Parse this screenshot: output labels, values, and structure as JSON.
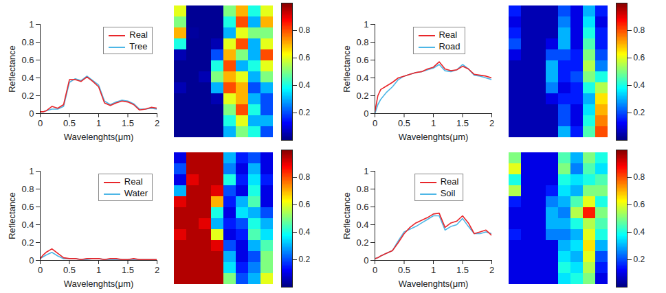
{
  "chart_data": [
    {
      "type": "line",
      "x_label": "Wavelenghts(μm)",
      "y_label": "Reflectance",
      "legend": "northeast",
      "xlim": [
        0,
        2
      ],
      "xticks": [
        0,
        0.5,
        1,
        1.5,
        2
      ],
      "ylim": [
        0,
        1
      ],
      "yticks": [
        0,
        0.2,
        0.4,
        0.6,
        0.8,
        1
      ],
      "x": [
        0,
        0.05,
        0.1,
        0.2,
        0.3,
        0.4,
        0.5,
        0.6,
        0.7,
        0.8,
        0.9,
        1,
        1.1,
        1.2,
        1.3,
        1.4,
        1.5,
        1.6,
        1.7,
        1.8,
        1.9,
        2
      ],
      "series": [
        {
          "name": "Real",
          "color": "#e8262a",
          "values": [
            0.02,
            0.02,
            0.03,
            0.08,
            0.06,
            0.1,
            0.38,
            0.38,
            0.36,
            0.41,
            0.36,
            0.3,
            0.12,
            0.09,
            0.12,
            0.14,
            0.13,
            0.1,
            0.04,
            0.05,
            0.07,
            0.06
          ]
        },
        {
          "name": "Tree",
          "color": "#4db6e6",
          "values": [
            0.02,
            0.02,
            0.03,
            0.05,
            0.05,
            0.08,
            0.35,
            0.39,
            0.37,
            0.42,
            0.37,
            0.32,
            0.14,
            0.1,
            0.13,
            0.15,
            0.14,
            0.11,
            0.05,
            0.05,
            0.06,
            0.05
          ]
        }
      ]
    },
    {
      "type": "heatmap",
      "color": "jet",
      "color_range": [
        0,
        1
      ],
      "color_ticks": [
        0.2,
        0.4,
        0.6,
        0.8
      ],
      "cells": [
        [
          0.6,
          0.02,
          0.02,
          0.02,
          0.5,
          0.7,
          0.4,
          0.6
        ],
        [
          0.5,
          0.02,
          0.02,
          0.02,
          0.4,
          0.8,
          0.3,
          0.7
        ],
        [
          0.7,
          0.03,
          0.02,
          0.02,
          0.3,
          0.6,
          0.5,
          0.5
        ],
        [
          0.4,
          0.02,
          0.02,
          0.05,
          0.6,
          0.8,
          0.3,
          0.6
        ],
        [
          0.05,
          0.02,
          0.02,
          0.2,
          0.7,
          0.5,
          0.3,
          0.8
        ],
        [
          0.02,
          0.02,
          0.02,
          0.4,
          0.8,
          0.3,
          0.4,
          0.6
        ],
        [
          0.02,
          0.02,
          0.05,
          0.5,
          0.7,
          0.6,
          0.3,
          0.5
        ],
        [
          0.05,
          0.02,
          0.02,
          0.3,
          0.8,
          0.7,
          0.2,
          0.3
        ],
        [
          0.02,
          0.02,
          0.02,
          0.05,
          0.6,
          0.7,
          0.3,
          0.2
        ],
        [
          0.02,
          0.02,
          0.02,
          0.02,
          0.5,
          0.8,
          0.4,
          0.2
        ],
        [
          0.02,
          0.02,
          0.02,
          0.02,
          0.4,
          0.6,
          0.3,
          0.3
        ],
        [
          0.02,
          0.02,
          0.02,
          0.02,
          0.3,
          0.5,
          0.4,
          0.2
        ]
      ]
    },
    {
      "type": "line",
      "x_label": "Wavelenghts(μm)",
      "y_label": "Reflectance",
      "legend": "north",
      "xlim": [
        0,
        2
      ],
      "xticks": [
        0,
        0.5,
        1,
        1.5,
        2
      ],
      "ylim": [
        0,
        1
      ],
      "yticks": [
        0,
        0.2,
        0.4,
        0.6,
        0.8,
        1
      ],
      "x": [
        0,
        0.05,
        0.1,
        0.2,
        0.3,
        0.4,
        0.5,
        0.6,
        0.7,
        0.8,
        0.9,
        1,
        1.1,
        1.2,
        1.3,
        1.4,
        1.5,
        1.6,
        1.7,
        1.8,
        1.9,
        2
      ],
      "series": [
        {
          "name": "Real",
          "color": "#e8262a",
          "values": [
            0.02,
            0.2,
            0.27,
            0.31,
            0.35,
            0.4,
            0.42,
            0.44,
            0.46,
            0.47,
            0.5,
            0.52,
            0.58,
            0.5,
            0.48,
            0.49,
            0.53,
            0.5,
            0.44,
            0.43,
            0.42,
            0.4
          ]
        },
        {
          "name": "Road",
          "color": "#4db6e6",
          "values": [
            0,
            0.1,
            0.16,
            0.24,
            0.3,
            0.38,
            0.42,
            0.44,
            0.46,
            0.47,
            0.49,
            0.51,
            0.55,
            0.48,
            0.47,
            0.49,
            0.55,
            0.5,
            0.43,
            0.42,
            0.4,
            0.38
          ]
        }
      ]
    },
    {
      "type": "heatmap",
      "color": "jet",
      "color_range": [
        0,
        1
      ],
      "color_ticks": [
        0.2,
        0.4,
        0.6,
        0.8
      ],
      "cells": [
        [
          0.15,
          0.05,
          0.05,
          0.05,
          0.2,
          0.1,
          0.3,
          0.15
        ],
        [
          0.1,
          0.05,
          0.05,
          0.05,
          0.25,
          0.1,
          0.35,
          0.1
        ],
        [
          0.15,
          0.05,
          0.05,
          0.05,
          0.3,
          0.1,
          0.4,
          0.15
        ],
        [
          0.2,
          0.05,
          0.05,
          0.1,
          0.3,
          0.1,
          0.45,
          0.15
        ],
        [
          0.1,
          0.05,
          0.05,
          0.2,
          0.2,
          0.15,
          0.5,
          0.2
        ],
        [
          0.05,
          0.05,
          0.05,
          0.3,
          0.15,
          0.15,
          0.55,
          0.25
        ],
        [
          0.05,
          0.05,
          0.05,
          0.3,
          0.15,
          0.2,
          0.5,
          0.4
        ],
        [
          0.05,
          0.05,
          0.05,
          0.25,
          0.1,
          0.15,
          0.4,
          0.55
        ],
        [
          0.05,
          0.05,
          0.05,
          0.1,
          0.15,
          0.15,
          0.3,
          0.65
        ],
        [
          0.05,
          0.05,
          0.05,
          0.05,
          0.2,
          0.1,
          0.35,
          0.7
        ],
        [
          0.05,
          0.05,
          0.05,
          0.05,
          0.2,
          0.1,
          0.4,
          0.75
        ],
        [
          0.05,
          0.05,
          0.05,
          0.05,
          0.3,
          0.15,
          0.45,
          0.8
        ]
      ]
    },
    {
      "type": "line",
      "x_label": "Wavelenghts(μm)",
      "y_label": "Reflectance",
      "legend": "northeast",
      "xlim": [
        0,
        2
      ],
      "xticks": [
        0,
        0.5,
        1,
        1.5,
        2
      ],
      "ylim": [
        0,
        1
      ],
      "yticks": [
        0,
        0.2,
        0.4,
        0.6,
        0.8,
        1
      ],
      "x": [
        0,
        0.05,
        0.1,
        0.2,
        0.3,
        0.4,
        0.5,
        0.6,
        0.7,
        0.8,
        0.9,
        1,
        1.1,
        1.2,
        1.3,
        1.4,
        1.5,
        1.6,
        1.7,
        1.8,
        1.9,
        2
      ],
      "series": [
        {
          "name": "Real",
          "color": "#e8262a",
          "values": [
            0.02,
            0.06,
            0.09,
            0.13,
            0.08,
            0.03,
            0.02,
            0.02,
            0.01,
            0.02,
            0.02,
            0.02,
            0.01,
            0.02,
            0.02,
            0.01,
            0.01,
            0.02,
            0.01,
            0.01,
            0.01,
            0.01
          ]
        },
        {
          "name": "Water",
          "color": "#4db6e6",
          "values": [
            0.02,
            0.04,
            0.06,
            0.09,
            0.05,
            0.02,
            0.02,
            0.02,
            0.01,
            0.01,
            0.02,
            0.02,
            0.01,
            0.01,
            0.01,
            0.01,
            0.01,
            0.01,
            0.01,
            0.01,
            0.01,
            0.01
          ]
        }
      ]
    },
    {
      "type": "heatmap",
      "color": "jet",
      "color_range": [
        0,
        1
      ],
      "color_ticks": [
        0.2,
        0.4,
        0.6,
        0.8
      ],
      "cells": [
        [
          0.1,
          0.95,
          0.95,
          0.95,
          0.3,
          0.15,
          0.2,
          0.1
        ],
        [
          0.2,
          0.95,
          0.95,
          0.95,
          0.25,
          0.1,
          0.3,
          0.1
        ],
        [
          0.1,
          0.9,
          0.95,
          0.95,
          0.4,
          0.15,
          0.35,
          0.15
        ],
        [
          0.3,
          0.95,
          0.95,
          0.9,
          0.2,
          0.1,
          0.4,
          0.1
        ],
        [
          0.9,
          0.95,
          0.95,
          0.7,
          0.15,
          0.3,
          0.45,
          0.1
        ],
        [
          0.95,
          0.95,
          0.95,
          0.4,
          0.1,
          0.35,
          0.3,
          0.2
        ],
        [
          0.95,
          0.95,
          0.9,
          0.3,
          0.15,
          0.2,
          0.4,
          0.3
        ],
        [
          0.9,
          0.95,
          0.95,
          0.6,
          0.1,
          0.15,
          0.45,
          0.35
        ],
        [
          0.95,
          0.95,
          0.95,
          0.9,
          0.2,
          0.1,
          0.3,
          0.45
        ],
        [
          0.95,
          0.95,
          0.95,
          0.95,
          0.3,
          0.1,
          0.2,
          0.5
        ],
        [
          0.95,
          0.95,
          0.95,
          0.95,
          0.35,
          0.15,
          0.25,
          0.5
        ],
        [
          0.95,
          0.95,
          0.95,
          0.95,
          0.5,
          0.2,
          0.3,
          0.6
        ]
      ]
    },
    {
      "type": "line",
      "x_label": "Wavelenghts(μm)",
      "y_label": "Reflectance",
      "legend": "north",
      "xlim": [
        0,
        2
      ],
      "xticks": [
        0,
        0.5,
        1,
        1.5,
        2
      ],
      "ylim": [
        0,
        1
      ],
      "yticks": [
        0,
        0.2,
        0.4,
        0.6,
        0.8,
        1
      ],
      "x": [
        0,
        0.05,
        0.1,
        0.2,
        0.3,
        0.4,
        0.5,
        0.6,
        0.7,
        0.8,
        0.9,
        1,
        1.1,
        1.2,
        1.3,
        1.4,
        1.5,
        1.6,
        1.7,
        1.8,
        1.9,
        2
      ],
      "series": [
        {
          "name": "Real",
          "color": "#e8262a",
          "values": [
            0.02,
            0.03,
            0.05,
            0.08,
            0.11,
            0.2,
            0.3,
            0.37,
            0.42,
            0.45,
            0.48,
            0.52,
            0.53,
            0.37,
            0.42,
            0.44,
            0.5,
            0.42,
            0.3,
            0.32,
            0.34,
            0.28
          ]
        },
        {
          "name": "Soil",
          "color": "#4db6e6",
          "values": [
            0.02,
            0.03,
            0.05,
            0.08,
            0.11,
            0.22,
            0.32,
            0.35,
            0.38,
            0.42,
            0.46,
            0.5,
            0.5,
            0.34,
            0.38,
            0.4,
            0.47,
            0.38,
            0.3,
            0.3,
            0.32,
            0.3
          ]
        }
      ]
    },
    {
      "type": "heatmap",
      "color": "jet",
      "color_range": [
        0,
        1
      ],
      "color_ticks": [
        0.2,
        0.4,
        0.6,
        0.8
      ],
      "cells": [
        [
          0.5,
          0.1,
          0.1,
          0.1,
          0.45,
          0.3,
          0.5,
          0.4
        ],
        [
          0.6,
          0.1,
          0.1,
          0.1,
          0.5,
          0.25,
          0.45,
          0.35
        ],
        [
          0.4,
          0.1,
          0.1,
          0.1,
          0.4,
          0.35,
          0.4,
          0.45
        ],
        [
          0.55,
          0.1,
          0.1,
          0.15,
          0.35,
          0.3,
          0.5,
          0.5
        ],
        [
          0.15,
          0.1,
          0.1,
          0.25,
          0.3,
          0.45,
          0.6,
          0.4
        ],
        [
          0.1,
          0.1,
          0.1,
          0.3,
          0.25,
          0.55,
          0.85,
          0.5
        ],
        [
          0.1,
          0.1,
          0.1,
          0.3,
          0.3,
          0.4,
          0.55,
          0.45
        ],
        [
          0.15,
          0.1,
          0.1,
          0.25,
          0.25,
          0.3,
          0.6,
          0.4
        ],
        [
          0.1,
          0.1,
          0.1,
          0.1,
          0.3,
          0.35,
          0.65,
          0.3
        ],
        [
          0.1,
          0.1,
          0.1,
          0.1,
          0.35,
          0.3,
          0.6,
          0.2
        ],
        [
          0.1,
          0.1,
          0.1,
          0.1,
          0.4,
          0.35,
          0.55,
          0.15
        ],
        [
          0.1,
          0.1,
          0.1,
          0.1,
          0.35,
          0.4,
          0.5,
          0.1
        ]
      ]
    }
  ]
}
